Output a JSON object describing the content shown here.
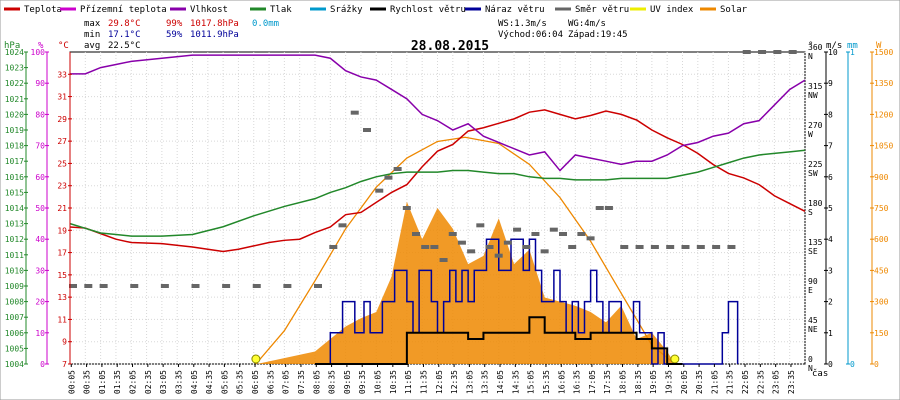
{
  "chart_data": {
    "type": "line",
    "title": "28.08.2015",
    "legend": {
      "placement": "top",
      "items": [
        {
          "label": "Teplota",
          "color": "#cc0000"
        },
        {
          "label": "Přízemní teplota",
          "color": "#cc00cc"
        },
        {
          "label": "Vlhkost",
          "color": "#8800aa"
        },
        {
          "label": "Tlak",
          "color": "#22882a"
        },
        {
          "label": "Srážky",
          "color": "#0099cc"
        },
        {
          "label": "Rychlost větru",
          "color": "#000000"
        },
        {
          "label": "Náraz větru",
          "color": "#000099"
        },
        {
          "label": "Směr větru",
          "color": "#666666"
        },
        {
          "label": "UV index",
          "color": "#eeee00"
        },
        {
          "label": "Solar",
          "color": "#ee8800"
        }
      ]
    },
    "stats": {
      "max_label": "max",
      "max_temp": "29.8°C",
      "max_hum": "99%",
      "max_press": "1017.8hPa",
      "rain": "0.0mm",
      "min_label": "min",
      "min_temp": "17.1°C",
      "min_hum": "59%",
      "min_press": "1011.9hPa",
      "avg_label": "avg",
      "avg_temp": "22.5°C",
      "ws": "WS:1.3m/s",
      "wg": "WG:4m/s",
      "sunrise": "Východ:06:04",
      "sunset": "Západ:19:45"
    },
    "xlabel": "čas",
    "x_ticks": [
      "00:05",
      "00:35",
      "01:05",
      "01:35",
      "02:05",
      "02:35",
      "03:05",
      "03:35",
      "04:05",
      "04:35",
      "05:05",
      "05:35",
      "06:05",
      "06:35",
      "07:05",
      "07:35",
      "08:05",
      "08:35",
      "09:05",
      "09:35",
      "10:05",
      "10:35",
      "11:05",
      "11:35",
      "12:05",
      "12:35",
      "13:05",
      "13:35",
      "14:05",
      "14:35",
      "15:05",
      "15:35",
      "16:05",
      "16:35",
      "17:05",
      "17:35",
      "18:05",
      "18:35",
      "19:05",
      "19:35",
      "20:05",
      "20:35",
      "21:05",
      "21:35",
      "22:05",
      "22:35",
      "23:05",
      "23:35"
    ],
    "axes": {
      "pressure": {
        "unit": "hPa",
        "color": "#22882a",
        "range": [
          1004,
          1024
        ],
        "ticks": [
          1004,
          1005,
          1006,
          1007,
          1008,
          1009,
          1010,
          1011,
          1012,
          1013,
          1014,
          1015,
          1016,
          1017,
          1018,
          1019,
          1020,
          1021,
          1022,
          1023,
          1024
        ]
      },
      "humidity": {
        "unit": "%",
        "color": "#cc00cc",
        "range": [
          0,
          100
        ],
        "ticks": [
          0,
          10,
          20,
          30,
          40,
          50,
          60,
          70,
          80,
          90,
          100
        ]
      },
      "temperature": {
        "unit": "°C",
        "color": "#cc0000",
        "range": [
          7,
          35
        ],
        "ticks": [
          7,
          9,
          11,
          13,
          15,
          17,
          19,
          21,
          23,
          25,
          27,
          29,
          31,
          33
        ]
      },
      "direction": {
        "unit": "°",
        "range": [
          0,
          360
        ],
        "ticks": [
          0,
          45,
          90,
          135,
          180,
          225,
          270,
          315,
          360
        ],
        "labels": [
          "N",
          "NE",
          "E",
          "SE",
          "S",
          "SW",
          "W",
          "NW",
          "N"
        ]
      },
      "wind": {
        "unit": "m/s",
        "range": [
          0,
          10
        ],
        "ticks": [
          0,
          1,
          2,
          3,
          4,
          5,
          6,
          7,
          8,
          9,
          10
        ]
      },
      "rain": {
        "unit": "mm",
        "color": "#0099cc",
        "range": [
          0,
          1
        ],
        "ticks": [
          0,
          1
        ]
      },
      "solar": {
        "unit": "W",
        "color": "#ee8800",
        "range": [
          0,
          1500
        ],
        "ticks": [
          0,
          150,
          300,
          450,
          600,
          750,
          900,
          1050,
          1200,
          1350,
          1500
        ]
      }
    },
    "series": [
      {
        "name": "Teplota",
        "color": "#cc0000",
        "unit": "°C",
        "x": [
          0,
          0.5,
          1,
          1.5,
          2,
          3,
          4,
          4.5,
          5,
          5.5,
          6,
          6.5,
          7,
          7.5,
          8,
          8.5,
          9,
          9.5,
          10,
          10.5,
          11,
          11.5,
          12,
          12.5,
          13,
          13.5,
          14,
          14.5,
          15,
          15.5,
          16,
          16.5,
          17,
          17.5,
          18,
          18.5,
          19,
          19.5,
          20,
          20.5,
          21,
          21.5,
          22,
          22.5,
          23,
          23.5,
          24
        ],
        "y": [
          19.3,
          19.2,
          18.7,
          18.2,
          17.9,
          17.8,
          17.5,
          17.3,
          17.1,
          17.3,
          17.6,
          17.9,
          18.1,
          18.2,
          18.8,
          19.3,
          20.4,
          20.6,
          21.5,
          22.4,
          23.1,
          24.7,
          26.1,
          26.7,
          27.9,
          28.2,
          28.6,
          29.0,
          29.6,
          29.8,
          29.4,
          29.0,
          29.3,
          29.7,
          29.4,
          28.9,
          28.0,
          27.3,
          26.7,
          25.9,
          24.9,
          24.1,
          23.7,
          23.1,
          22.1,
          21.4,
          20.7
        ]
      },
      {
        "name": "Vlhkost",
        "color": "#8800aa",
        "unit": "%",
        "x": [
          0,
          0.5,
          1,
          1.5,
          2,
          3,
          4,
          5,
          6,
          7,
          8,
          8.5,
          9,
          9.5,
          10,
          10.5,
          11,
          11.5,
          12,
          12.5,
          13,
          13.5,
          14,
          14.5,
          15,
          15.5,
          16,
          16.5,
          17,
          17.5,
          18,
          18.5,
          19,
          19.5,
          20,
          20.5,
          21,
          21.5,
          22,
          22.5,
          23,
          23.5,
          24
        ],
        "y": [
          93,
          93,
          95,
          96,
          97,
          98,
          99,
          99,
          99,
          99,
          99,
          98,
          94,
          92,
          91,
          88,
          85,
          80,
          78,
          75,
          77,
          73,
          71,
          69,
          67,
          68,
          62,
          67,
          66,
          65,
          64,
          65,
          65,
          67,
          70,
          71,
          73,
          74,
          77,
          78,
          83,
          88,
          91
        ]
      },
      {
        "name": "Tlak",
        "color": "#22882a",
        "unit": "hPa",
        "x": [
          0,
          0.5,
          1,
          1.5,
          2,
          3,
          4,
          5,
          6,
          7,
          8,
          8.5,
          9,
          9.5,
          10,
          10.5,
          11,
          11.5,
          12,
          12.5,
          13,
          13.5,
          14,
          14.5,
          15,
          15.5,
          16,
          16.5,
          17,
          17.5,
          18,
          18.5,
          19,
          19.5,
          20,
          20.5,
          21,
          21.5,
          22,
          22.5,
          23,
          23.5,
          24
        ],
        "y": [
          1013.0,
          1012.7,
          1012.4,
          1012.3,
          1012.2,
          1012.2,
          1012.3,
          1012.8,
          1013.5,
          1014.1,
          1014.6,
          1015.0,
          1015.3,
          1015.7,
          1016.0,
          1016.2,
          1016.3,
          1016.3,
          1016.3,
          1016.4,
          1016.4,
          1016.3,
          1016.2,
          1016.2,
          1016.0,
          1015.9,
          1015.9,
          1015.8,
          1015.8,
          1015.8,
          1015.9,
          1015.9,
          1015.9,
          1015.9,
          1016.1,
          1016.3,
          1016.6,
          1016.9,
          1017.2,
          1017.4,
          1017.5,
          1017.6,
          1017.7
        ]
      },
      {
        "name": "Solar",
        "color": "#ee8800",
        "unit": "W",
        "kind": "area",
        "x": [
          6.1,
          8,
          8.5,
          9,
          9.5,
          10,
          10.5,
          11,
          11.5,
          12,
          12.5,
          13,
          13.5,
          14,
          14.5,
          15,
          15.5,
          16,
          16.5,
          17,
          17.5,
          18,
          18.5,
          19,
          19.5,
          19.75
        ],
        "y": [
          0,
          60,
          120,
          180,
          220,
          250,
          420,
          780,
          600,
          750,
          650,
          480,
          520,
          700,
          480,
          550,
          320,
          300,
          280,
          250,
          200,
          280,
          120,
          150,
          60,
          0
        ]
      },
      {
        "name": "Solar (teoretický)",
        "color": "#ee8800",
        "unit": "W",
        "kind": "line",
        "x": [
          6.07,
          7,
          8,
          9,
          10,
          11,
          12,
          12.9,
          14,
          15,
          16,
          17,
          18,
          19,
          19.75
        ],
        "y": [
          0,
          160,
          400,
          650,
          850,
          990,
          1070,
          1090,
          1060,
          960,
          800,
          590,
          340,
          90,
          0
        ]
      },
      {
        "name": "Náraz větru",
        "color": "#000099",
        "unit": "m/s",
        "x": [
          8.0,
          8.4,
          8.5,
          8.7,
          8.9,
          9.1,
          9.3,
          9.5,
          9.6,
          9.8,
          10.0,
          10.2,
          10.4,
          10.6,
          10.8,
          11.0,
          11.2,
          11.4,
          11.6,
          11.8,
          12.0,
          12.2,
          12.4,
          12.6,
          12.8,
          13.0,
          13.2,
          13.4,
          13.6,
          13.8,
          14.0,
          14.2,
          14.4,
          14.6,
          14.8,
          15.0,
          15.2,
          15.4,
          15.6,
          15.8,
          16.0,
          16.2,
          16.4,
          16.6,
          16.8,
          17.0,
          17.2,
          17.4,
          17.6,
          17.8,
          18.0,
          18.2,
          18.4,
          18.6,
          18.8,
          19.0,
          19.2,
          19.4,
          19.6,
          19.8,
          21.0,
          21.2,
          21.3,
          21.5,
          21.6,
          21.8
        ],
        "y": [
          0,
          0,
          1,
          1,
          2,
          2,
          1,
          1,
          2,
          1,
          1,
          2,
          2,
          3,
          3,
          2,
          1,
          3,
          3,
          2,
          1,
          2,
          3,
          2,
          3,
          2,
          3,
          3,
          4,
          4,
          3,
          3,
          4,
          4,
          3,
          4,
          3,
          2,
          2,
          3,
          2,
          1,
          2,
          1,
          2,
          3,
          2,
          1,
          2,
          2,
          1,
          1,
          2,
          1,
          1,
          0,
          1,
          0,
          0,
          0,
          0,
          0,
          1,
          2,
          2,
          0
        ]
      },
      {
        "name": "Rychlost větru",
        "color": "#000000",
        "unit": "m/s",
        "x": [
          8.0,
          8.6,
          8.7,
          9.0,
          9.5,
          10.0,
          10.5,
          11.0,
          11.5,
          12.0,
          12.5,
          13.0,
          13.5,
          14.0,
          14.5,
          15.0,
          15.5,
          16.0,
          16.5,
          17.0,
          17.5,
          18.0,
          18.5,
          19.0,
          19.5,
          20.0
        ],
        "y": [
          0,
          0,
          0,
          0,
          0,
          0,
          0,
          1,
          1,
          1,
          1,
          0.8,
          1,
          1,
          1,
          1.5,
          1,
          1,
          0.8,
          1,
          1,
          1,
          0.8,
          0.5,
          0,
          0
        ]
      },
      {
        "name": "Směr větru",
        "color": "#666666",
        "unit": "°",
        "kind": "marks",
        "x": [
          0,
          0.5,
          1,
          2,
          3,
          4,
          5,
          6,
          7,
          8,
          8.5,
          8.8,
          9.2,
          9.6,
          10,
          10.3,
          10.6,
          10.9,
          11.2,
          11.5,
          11.8,
          12.1,
          12.4,
          12.7,
          13,
          13.3,
          13.6,
          13.9,
          14.2,
          14.5,
          14.8,
          15.1,
          15.4,
          15.7,
          16,
          16.3,
          16.6,
          16.9,
          17.2,
          17.5,
          18,
          18.5,
          19,
          19.5,
          20,
          20.5,
          21,
          21.5,
          22,
          22.5,
          23,
          23.5
        ],
        "y": [
          90,
          90,
          90,
          90,
          90,
          90,
          90,
          90,
          90,
          90,
          135,
          160,
          290,
          270,
          200,
          215,
          225,
          180,
          150,
          135,
          135,
          120,
          150,
          140,
          130,
          160,
          135,
          125,
          140,
          155,
          135,
          150,
          130,
          155,
          150,
          135,
          150,
          145,
          180,
          180,
          135,
          135,
          135,
          135,
          135,
          135,
          135,
          135,
          360,
          360,
          360,
          360
        ]
      }
    ]
  }
}
